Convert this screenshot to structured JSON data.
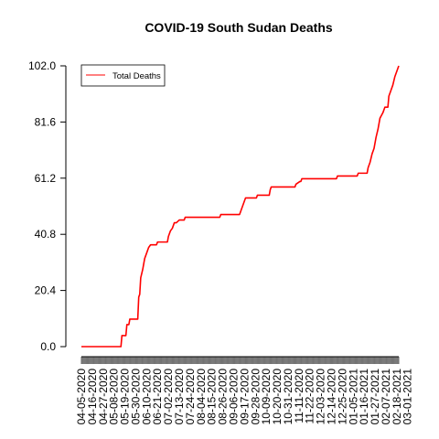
{
  "chart_data": {
    "type": "line",
    "title": "COVID-19 South Sudan Deaths",
    "xlabel": "",
    "ylabel": "",
    "ylim": [
      0,
      102
    ],
    "y_ticks": [
      "0.0",
      "20.4",
      "40.8",
      "61.2",
      "81.6",
      "102.0"
    ],
    "x_tick_labels": [
      "04-05-2020",
      "04-16-2020",
      "04-27-2020",
      "05-08-2020",
      "05-19-2020",
      "05-30-2020",
      "06-10-2020",
      "06-21-2020",
      "07-02-2020",
      "07-13-2020",
      "07-24-2020",
      "08-04-2020",
      "08-15-2020",
      "08-26-2020",
      "09-06-2020",
      "09-17-2020",
      "09-28-2020",
      "10-09-2020",
      "10-20-2020",
      "10-31-2020",
      "11-11-2020",
      "11-22-2020",
      "12-03-2020",
      "12-14-2020",
      "12-25-2020",
      "01-05-2021",
      "01-16-2021",
      "01-27-2021",
      "02-07-2021",
      "02-18-2021",
      "03-01-2021"
    ],
    "grid": false,
    "legend_position": "top-left",
    "series": [
      {
        "name": "Total Deaths",
        "color": "#ff0000",
        "points": [
          [
            "04-05-2020",
            0
          ],
          [
            "05-15-2020",
            0
          ],
          [
            "05-16-2020",
            4
          ],
          [
            "05-20-2020",
            4
          ],
          [
            "05-21-2020",
            8
          ],
          [
            "05-23-2020",
            8
          ],
          [
            "05-24-2020",
            10
          ],
          [
            "06-01-2020",
            10
          ],
          [
            "06-02-2020",
            18
          ],
          [
            "06-03-2020",
            19
          ],
          [
            "06-04-2020",
            25
          ],
          [
            "06-06-2020",
            28
          ],
          [
            "06-08-2020",
            32
          ],
          [
            "06-10-2020",
            34
          ],
          [
            "06-12-2020",
            36
          ],
          [
            "06-14-2020",
            37
          ],
          [
            "06-20-2020",
            37
          ],
          [
            "06-21-2020",
            38
          ],
          [
            "07-01-2020",
            38
          ],
          [
            "07-02-2020",
            40
          ],
          [
            "07-04-2020",
            42
          ],
          [
            "07-06-2020",
            43
          ],
          [
            "07-08-2020",
            45
          ],
          [
            "07-10-2020",
            45
          ],
          [
            "07-13-2020",
            46
          ],
          [
            "07-18-2020",
            46
          ],
          [
            "07-19-2020",
            47
          ],
          [
            "08-23-2020",
            47
          ],
          [
            "08-24-2020",
            48
          ],
          [
            "09-12-2020",
            48
          ],
          [
            "09-13-2020",
            49
          ],
          [
            "09-16-2020",
            52
          ],
          [
            "09-18-2020",
            54
          ],
          [
            "09-29-2020",
            54
          ],
          [
            "09-30-2020",
            55
          ],
          [
            "10-12-2020",
            55
          ],
          [
            "10-13-2020",
            57
          ],
          [
            "10-14-2020",
            58
          ],
          [
            "11-07-2020",
            58
          ],
          [
            "11-08-2020",
            59
          ],
          [
            "11-12-2020",
            60
          ],
          [
            "11-13-2020",
            60
          ],
          [
            "11-14-2020",
            61
          ],
          [
            "12-19-2020",
            61
          ],
          [
            "12-20-2020",
            62
          ],
          [
            "01-09-2021",
            62
          ],
          [
            "01-10-2021",
            63
          ],
          [
            "01-19-2021",
            63
          ],
          [
            "01-20-2021",
            65
          ],
          [
            "01-22-2021",
            67
          ],
          [
            "01-24-2021",
            70
          ],
          [
            "01-26-2021",
            72
          ],
          [
            "01-28-2021",
            76
          ],
          [
            "01-30-2021",
            79
          ],
          [
            "02-01-2021",
            83
          ],
          [
            "02-04-2021",
            85
          ],
          [
            "02-06-2021",
            87
          ],
          [
            "02-09-2021",
            87
          ],
          [
            "02-10-2021",
            91
          ],
          [
            "02-12-2021",
            93
          ],
          [
            "02-14-2021",
            95
          ],
          [
            "02-16-2021",
            98
          ],
          [
            "02-18-2021",
            100
          ],
          [
            "02-20-2021",
            102
          ]
        ]
      }
    ]
  }
}
